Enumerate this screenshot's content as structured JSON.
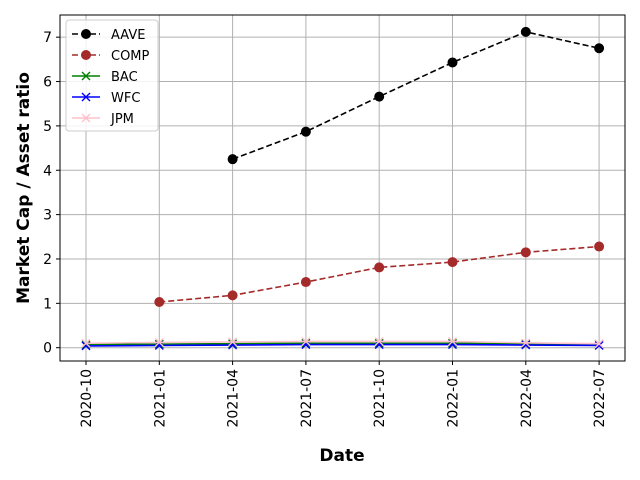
{
  "chart_data": {
    "type": "line",
    "title": "",
    "xlabel": "Date",
    "ylabel": "Market Cap / Asset ratio",
    "x_ticks": [
      "2020-10",
      "2021-01",
      "2021-04",
      "2021-07",
      "2021-10",
      "2022-01",
      "2022-04",
      "2022-07"
    ],
    "y_ticks": [
      "0",
      "1",
      "2",
      "3",
      "4",
      "5",
      "6",
      "7"
    ],
    "ylim": [
      -0.3,
      7.5
    ],
    "grid": true,
    "legend_position": "top-left",
    "series": [
      {
        "name": "AAVE",
        "color": "#000000",
        "line_style": "dashed",
        "marker": "circle",
        "x": [
          "2021-04",
          "2021-07",
          "2021-10",
          "2022-01",
          "2022-04",
          "2022-07"
        ],
        "values": [
          4.25,
          4.87,
          5.66,
          6.43,
          7.12,
          6.75
        ]
      },
      {
        "name": "COMP",
        "color": "#a52a2a",
        "line_style": "dashed",
        "marker": "circle",
        "x": [
          "2021-01",
          "2021-04",
          "2021-07",
          "2021-10",
          "2022-01",
          "2022-04",
          "2022-07"
        ],
        "values": [
          1.03,
          1.18,
          1.48,
          1.81,
          1.93,
          2.15,
          2.28
        ]
      },
      {
        "name": "BAC",
        "color": "#008000",
        "line_style": "solid",
        "marker": "x",
        "x": [
          "2020-10",
          "2021-01",
          "2021-04",
          "2021-07",
          "2021-10",
          "2022-01",
          "2022-04",
          "2022-07"
        ],
        "values": [
          0.07,
          0.08,
          0.09,
          0.1,
          0.1,
          0.1,
          0.09,
          0.08
        ]
      },
      {
        "name": "WFC",
        "color": "#0000ff",
        "line_style": "solid",
        "marker": "x",
        "x": [
          "2020-10",
          "2021-01",
          "2021-04",
          "2021-07",
          "2021-10",
          "2022-01",
          "2022-04",
          "2022-07"
        ],
        "values": [
          0.04,
          0.05,
          0.06,
          0.07,
          0.07,
          0.07,
          0.06,
          0.05
        ]
      },
      {
        "name": "JPM",
        "color": "#ffc0cb",
        "line_style": "solid",
        "marker": "x",
        "x": [
          "2020-10",
          "2021-01",
          "2021-04",
          "2021-07",
          "2021-10",
          "2022-01",
          "2022-04",
          "2022-07"
        ],
        "values": [
          0.1,
          0.12,
          0.13,
          0.14,
          0.14,
          0.14,
          0.11,
          0.09
        ]
      }
    ]
  }
}
